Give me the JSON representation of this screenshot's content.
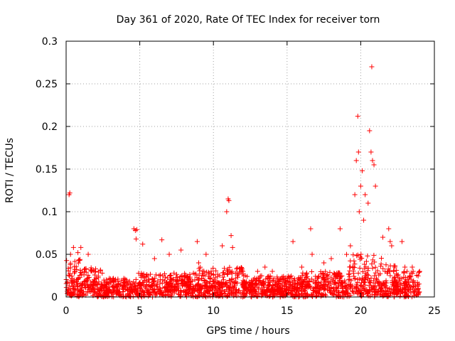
{
  "chart_data": {
    "type": "scatter",
    "title": "Day 361 of 2020, Rate Of TEC Index for receiver torn",
    "xlabel": "GPS time / hours",
    "ylabel": "ROTI / TECUs",
    "xlim": [
      0,
      25
    ],
    "ylim": [
      0,
      0.3
    ],
    "x_ticks": [
      "0",
      "5",
      "10",
      "15",
      "20",
      "25"
    ],
    "y_ticks": [
      "0",
      "0.05",
      "0.1",
      "0.15",
      "0.2",
      "0.25",
      "0.3"
    ],
    "grid": true,
    "marker": "+",
    "series": [
      {
        "name": "ROTI",
        "color": "#ff0000",
        "x": [
          0.2,
          0.25,
          0.3,
          0.5,
          0.8,
          1.0,
          1.5,
          2.0,
          4.6,
          4.7,
          4.75,
          4.8,
          5.2,
          6.0,
          6.5,
          7.0,
          7.8,
          8.9,
          9.0,
          9.5,
          10.6,
          10.9,
          11.0,
          11.05,
          11.2,
          11.3,
          12.0,
          13.0,
          13.5,
          14.0,
          15.4,
          16.0,
          16.6,
          16.7,
          17.5,
          18.0,
          18.6,
          19.3,
          19.6,
          19.7,
          19.8,
          19.85,
          19.9,
          20.0,
          20.1,
          20.2,
          20.3,
          20.5,
          20.6,
          20.7,
          20.75,
          20.8,
          20.9,
          21.0,
          21.5,
          21.9,
          22.0,
          22.1,
          22.8,
          23.0,
          23.5,
          24.0
        ],
        "y": [
          0.12,
          0.122,
          0.05,
          0.058,
          0.052,
          0.058,
          0.05,
          0.03,
          0.08,
          0.078,
          0.068,
          0.079,
          0.062,
          0.045,
          0.067,
          0.05,
          0.055,
          0.065,
          0.04,
          0.05,
          0.06,
          0.1,
          0.115,
          0.113,
          0.072,
          0.058,
          0.03,
          0.03,
          0.035,
          0.03,
          0.065,
          0.035,
          0.08,
          0.05,
          0.04,
          0.045,
          0.08,
          0.06,
          0.12,
          0.16,
          0.212,
          0.17,
          0.1,
          0.13,
          0.148,
          0.09,
          0.12,
          0.11,
          0.195,
          0.17,
          0.27,
          0.16,
          0.155,
          0.13,
          0.07,
          0.08,
          0.065,
          0.06,
          0.065,
          0.035,
          0.035,
          0.03
        ]
      }
    ]
  }
}
